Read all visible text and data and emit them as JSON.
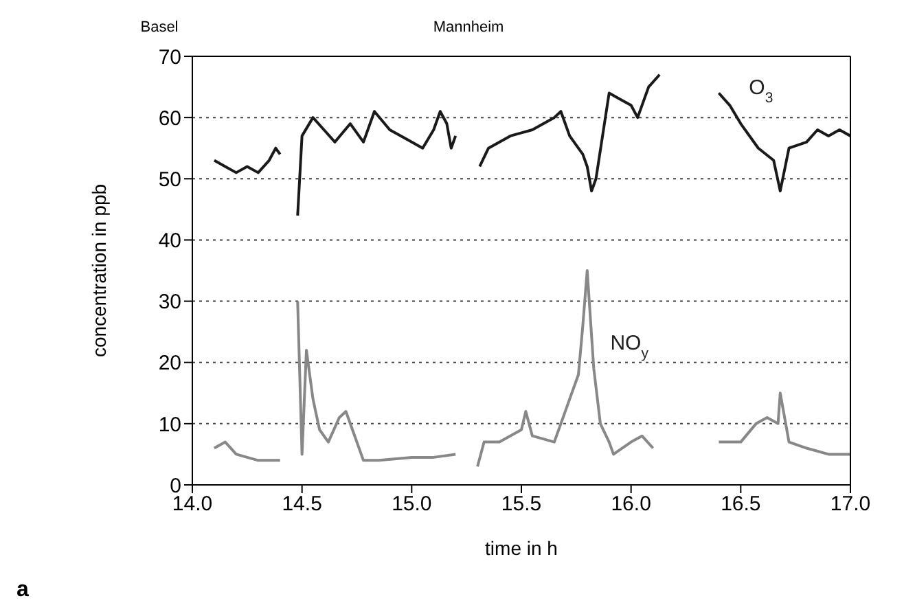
{
  "chart_data": {
    "type": "line",
    "xlabel": "time in h",
    "ylabel": "concentration in ppb",
    "xlim": [
      14.0,
      17.0
    ],
    "xticks": [
      {
        "value": 14,
        "label": "14.0"
      },
      14.5,
      {
        "value": 15,
        "label": "15.0"
      },
      15.5,
      {
        "value": 16,
        "label": "16.0"
      },
      16.5,
      {
        "value": 17,
        "label": "17.0"
      }
    ],
    "ylim": [
      0,
      70
    ],
    "yticks": [
      0,
      10,
      20,
      30,
      40,
      50,
      60,
      70
    ],
    "grid": "y",
    "marker": "none",
    "line_style": "solid",
    "annotations": [
      "Basel",
      "Mannheim",
      "a"
    ],
    "series": [
      {
        "name": "O$_{3}$",
        "color": "#1a1a1a",
        "x": [
          14.1,
          14.15,
          14.2,
          14.25,
          14.3,
          14.35,
          14.38,
          14.4,
          14.44,
          14.48,
          14.5,
          14.55,
          14.6,
          14.65,
          14.72,
          14.78,
          14.83,
          14.9,
          15.0,
          15.05,
          15.1,
          15.13,
          15.16,
          15.18,
          15.2,
          15.25,
          15.31,
          15.35,
          15.45,
          15.55,
          15.65,
          15.68,
          15.72,
          15.78,
          15.8,
          15.82,
          15.84,
          15.87,
          15.9,
          15.95,
          16.0,
          16.03,
          16.08,
          16.13,
          16.3,
          16.4,
          16.45,
          16.5,
          16.58,
          16.65,
          16.68,
          16.72,
          16.8,
          16.85,
          16.9,
          16.95,
          17.0
        ],
        "values": [
          53,
          52,
          51,
          52,
          51,
          53,
          55,
          54,
          null,
          44,
          57,
          60,
          58,
          56,
          59,
          56,
          61,
          58,
          56,
          55,
          58,
          61,
          59,
          55,
          57,
          null,
          52,
          55,
          57,
          58,
          60,
          61,
          57,
          54,
          52,
          48,
          50,
          57,
          64,
          63,
          62,
          60,
          65,
          67,
          null,
          64,
          62,
          59,
          55,
          53,
          48,
          55,
          56,
          58,
          57,
          58,
          57
        ]
      },
      {
        "name": "NO$_{y}$",
        "color": "#888888",
        "x": [
          14.1,
          14.15,
          14.2,
          14.3,
          14.4,
          14.44,
          14.48,
          14.5,
          14.52,
          14.55,
          14.58,
          14.62,
          14.67,
          14.7,
          14.73,
          14.78,
          14.85,
          15.0,
          15.1,
          15.2,
          15.25,
          15.3,
          15.33,
          15.4,
          15.5,
          15.52,
          15.55,
          15.65,
          15.68,
          15.72,
          15.76,
          15.78,
          15.8,
          15.83,
          15.86,
          15.9,
          15.92,
          16.0,
          16.05,
          16.1,
          16.3,
          16.4,
          16.5,
          16.57,
          16.62,
          16.67,
          16.68,
          16.72,
          16.8,
          16.9,
          17.0
        ],
        "values": [
          6,
          7,
          5,
          4,
          4,
          null,
          30,
          5,
          22,
          14,
          9,
          7,
          11,
          12,
          9,
          4,
          4,
          4.5,
          4.5,
          5,
          null,
          3,
          7,
          7,
          9,
          12,
          8,
          7,
          10,
          14,
          18,
          26,
          35,
          19,
          10,
          7,
          5,
          7,
          8,
          6,
          null,
          7,
          7,
          10,
          11,
          10,
          15,
          7,
          6,
          5,
          5
        ]
      }
    ]
  }
}
